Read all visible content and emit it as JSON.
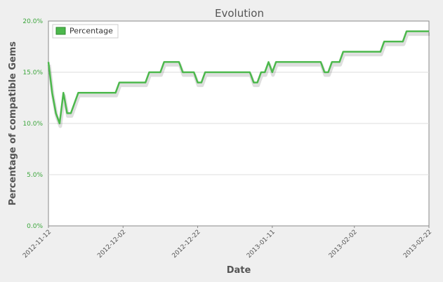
{
  "chart_data": {
    "type": "line",
    "title": "Evolution",
    "xlabel": "Date",
    "ylabel": "Percentage of compatible Gems",
    "xlim": [
      "2012-11-12",
      "2013-02-22"
    ],
    "ylim": [
      0,
      20
    ],
    "y_ticks": [
      0,
      5,
      10,
      15,
      20
    ],
    "y_tick_labels": [
      "0.0%",
      "5.0%",
      "10.0%",
      "15.0%",
      "20.0%"
    ],
    "x_ticks": [
      "2012-11-12",
      "2012-12-02",
      "2012-12-22",
      "2013-01-11",
      "2013-02-02",
      "2013-02-22"
    ],
    "grid": "horizontal",
    "legend_position": "top-left",
    "series": [
      {
        "name": "Percentage",
        "color": "#4cb84c",
        "points": [
          [
            "2012-11-12",
            16
          ],
          [
            "2012-11-13",
            13
          ],
          [
            "2012-11-14",
            11
          ],
          [
            "2012-11-15",
            10
          ],
          [
            "2012-11-16",
            13
          ],
          [
            "2012-11-17",
            11
          ],
          [
            "2012-11-18",
            11
          ],
          [
            "2012-11-20",
            13
          ],
          [
            "2012-11-30",
            13
          ],
          [
            "2012-12-01",
            14
          ],
          [
            "2012-12-08",
            14
          ],
          [
            "2012-12-09",
            15
          ],
          [
            "2012-12-12",
            15
          ],
          [
            "2012-12-13",
            16
          ],
          [
            "2012-12-17",
            16
          ],
          [
            "2012-12-18",
            15
          ],
          [
            "2012-12-21",
            15
          ],
          [
            "2012-12-22",
            14
          ],
          [
            "2012-12-23",
            14
          ],
          [
            "2012-12-24",
            15
          ],
          [
            "2013-01-05",
            15
          ],
          [
            "2013-01-06",
            14
          ],
          [
            "2013-01-07",
            14
          ],
          [
            "2013-01-08",
            15
          ],
          [
            "2013-01-09",
            15
          ],
          [
            "2013-01-10",
            16
          ],
          [
            "2013-01-11",
            15
          ],
          [
            "2013-01-12",
            16
          ],
          [
            "2013-01-24",
            16
          ],
          [
            "2013-01-25",
            15
          ],
          [
            "2013-01-26",
            15
          ],
          [
            "2013-01-27",
            16
          ],
          [
            "2013-01-29",
            16
          ],
          [
            "2013-01-30",
            17
          ],
          [
            "2013-02-09",
            17
          ],
          [
            "2013-02-10",
            18
          ],
          [
            "2013-02-15",
            18
          ],
          [
            "2013-02-16",
            19
          ],
          [
            "2013-02-22",
            19
          ]
        ]
      }
    ]
  }
}
